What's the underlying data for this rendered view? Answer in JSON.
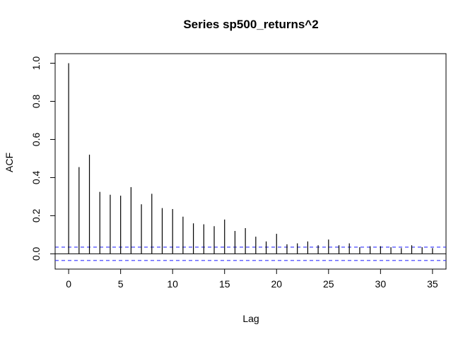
{
  "chart_data": {
    "type": "bar",
    "title": "Series  sp500_returns^2",
    "xlabel": "Lag",
    "ylabel": "ACF",
    "xlim": [
      -1.3,
      36.3
    ],
    "ylim": [
      -0.08,
      1.05
    ],
    "x_ticks": [
      0,
      5,
      10,
      15,
      20,
      25,
      30,
      35
    ],
    "y_ticks": [
      0.0,
      0.2,
      0.4,
      0.6,
      0.8,
      1.0
    ],
    "x_tick_labels": [
      "0",
      "5",
      "10",
      "15",
      "20",
      "25",
      "30",
      "35"
    ],
    "y_tick_labels": [
      "0.0",
      "0.2",
      "0.4",
      "0.6",
      "0.8",
      "1.0"
    ],
    "lags": [
      0,
      1,
      2,
      3,
      4,
      5,
      6,
      7,
      8,
      9,
      10,
      11,
      12,
      13,
      14,
      15,
      16,
      17,
      18,
      19,
      20,
      21,
      22,
      23,
      24,
      25,
      26,
      27,
      28,
      29,
      30,
      31,
      32,
      33,
      34,
      35
    ],
    "acf": [
      1.0,
      0.455,
      0.52,
      0.325,
      0.31,
      0.305,
      0.35,
      0.26,
      0.315,
      0.24,
      0.235,
      0.195,
      0.16,
      0.155,
      0.145,
      0.18,
      0.12,
      0.135,
      0.09,
      0.065,
      0.105,
      0.05,
      0.055,
      0.065,
      0.045,
      0.075,
      0.045,
      0.055,
      0.035,
      0.04,
      0.04,
      0.035,
      0.03,
      0.045,
      0.035,
      0.03
    ],
    "conf_bound": 0.035,
    "grid": false,
    "colors": {
      "bars": "#000000",
      "conf_lines": "#3333ff",
      "zero_line": "#000000"
    }
  }
}
